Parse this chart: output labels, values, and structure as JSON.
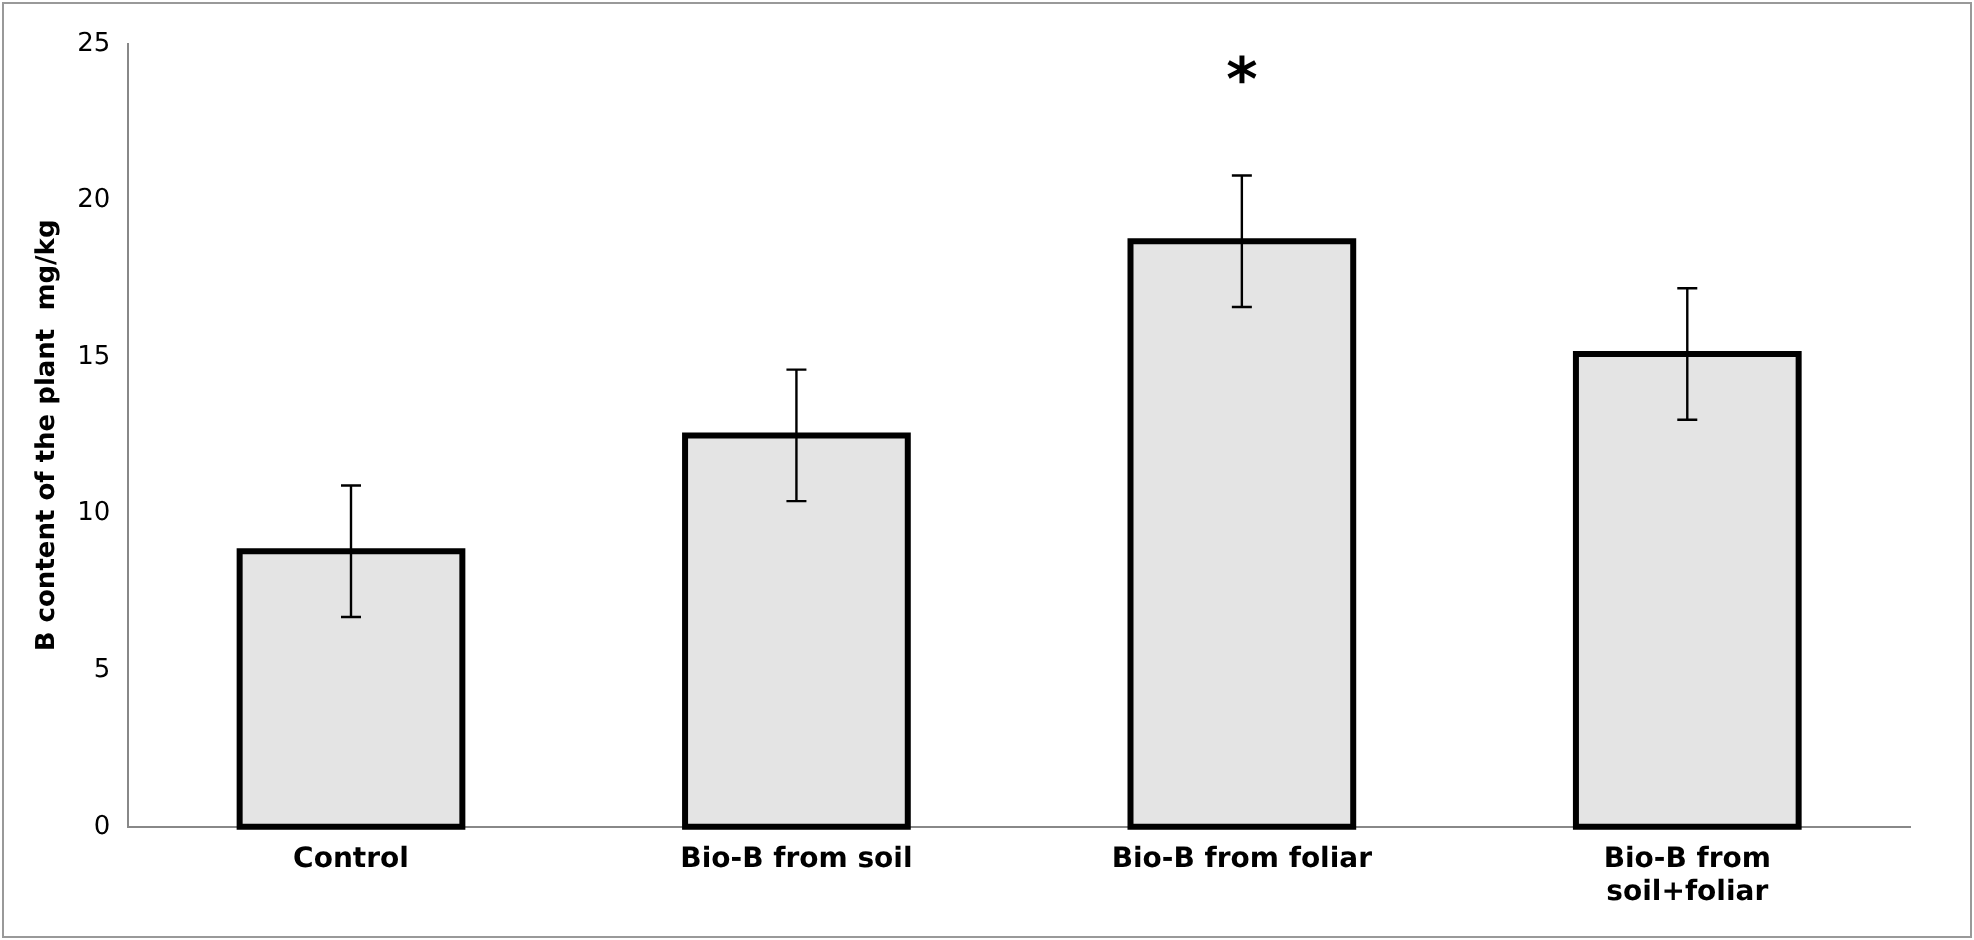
{
  "chart_data": {
    "type": "bar",
    "ylabel": "B content of the plant  mg/kg",
    "categories": [
      "Control",
      "Bio-B from soil",
      "Bio-B from foliar",
      "Bio-B from soil+foliar"
    ],
    "values": [
      8.8,
      12.5,
      18.7,
      15.1
    ],
    "errors": [
      2.1,
      2.1,
      2.1,
      2.1
    ],
    "color": "#e4e4e4",
    "ylim": [
      0,
      25
    ],
    "yticks": [
      0,
      5,
      10,
      15,
      20,
      25
    ],
    "grid": false,
    "legend": false,
    "annotations": [
      "*"
    ]
  }
}
